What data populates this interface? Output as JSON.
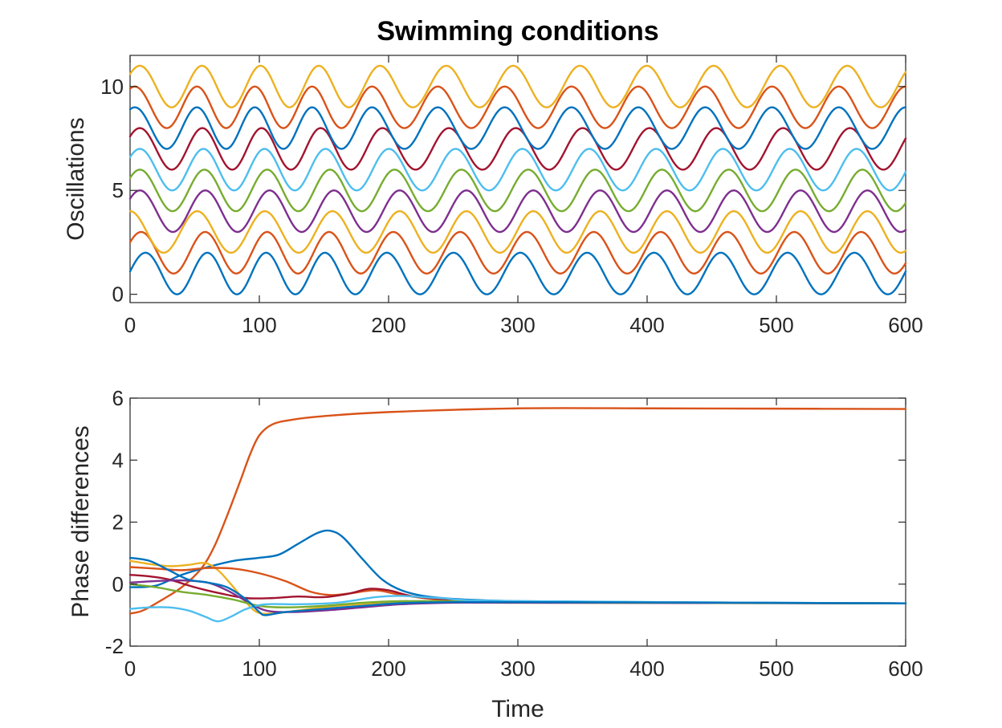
{
  "chart_data": [
    {
      "type": "line",
      "title": "Swimming conditions",
      "xlabel": "",
      "ylabel": "Oscillations",
      "xlim": [
        0,
        600
      ],
      "ylim": [
        -0.4,
        11.5
      ],
      "xticks": [
        0,
        100,
        200,
        300,
        400,
        500,
        600
      ],
      "xtick_labels": [
        "0",
        "100",
        "200",
        "300",
        "400",
        "500",
        "600"
      ],
      "yticks": [
        0,
        5,
        10
      ],
      "ytick_labels": [
        "0",
        "5",
        "10"
      ],
      "grid": false,
      "legend": "none",
      "oscillation": {
        "amplitude": 1,
        "period": 51.7,
        "time_range": [
          0,
          600
        ]
      },
      "series": [
        {
          "color": "#0072BD",
          "offset": 1,
          "value_at_start": 1.1,
          "value_at_end": 1.1
        },
        {
          "color": "#D95319",
          "offset": 2,
          "value_at_start": 2.5,
          "value_at_end": 1.5
        },
        {
          "color": "#EDB120",
          "offset": 3,
          "value_at_start": 4.0,
          "value_at_end": 2.1
        },
        {
          "color": "#7E2F8E",
          "offset": 4,
          "value_at_start": 4.6,
          "value_at_end": 3.1
        },
        {
          "color": "#77AC30",
          "offset": 5,
          "value_at_start": 5.6,
          "value_at_end": 4.4
        },
        {
          "color": "#4DBEEE",
          "offset": 6,
          "value_at_start": 6.6,
          "value_at_end": 5.9
        },
        {
          "color": "#A2142F",
          "offset": 7,
          "value_at_start": 7.6,
          "value_at_end": 7.5
        },
        {
          "color": "#0072BD",
          "offset": 8,
          "value_at_start": 8.9,
          "value_at_end": 9.0
        },
        {
          "color": "#D95319",
          "offset": 9,
          "value_at_start": 9.9,
          "value_at_end": 10.0
        },
        {
          "color": "#EDB120",
          "offset": 10,
          "value_at_start": 10.6,
          "value_at_end": 10.7
        }
      ]
    },
    {
      "type": "line",
      "title": "",
      "xlabel": "Time",
      "ylabel": "Phase differences",
      "xlim": [
        0,
        600
      ],
      "ylim": [
        -2,
        6
      ],
      "xticks": [
        0,
        100,
        200,
        300,
        400,
        500,
        600
      ],
      "xtick_labels": [
        "0",
        "100",
        "200",
        "300",
        "400",
        "500",
        "600"
      ],
      "yticks": [
        -2,
        0,
        2,
        4,
        6
      ],
      "ytick_labels": [
        "-2",
        "0",
        "2",
        "4",
        "6"
      ],
      "grid": false,
      "legend": "none",
      "series": [
        {
          "color": "#D95319",
          "points": [
            [
              0,
              -0.95
            ],
            [
              10,
              -0.85
            ],
            [
              25,
              -0.5
            ],
            [
              40,
              -0.1
            ],
            [
              55,
              0.5
            ],
            [
              65,
              1.2
            ],
            [
              75,
              2.2
            ],
            [
              85,
              3.3
            ],
            [
              93,
              4.2
            ],
            [
              100,
              4.8
            ],
            [
              110,
              5.15
            ],
            [
              125,
              5.3
            ],
            [
              150,
              5.42
            ],
            [
              200,
              5.55
            ],
            [
              300,
              5.67
            ],
            [
              400,
              5.67
            ],
            [
              500,
              5.66
            ],
            [
              600,
              5.65
            ]
          ]
        },
        {
          "color": "#0072BD",
          "points": [
            [
              0,
              -0.1
            ],
            [
              20,
              -0.05
            ],
            [
              40,
              0.3
            ],
            [
              60,
              0.55
            ],
            [
              80,
              0.75
            ],
            [
              100,
              0.85
            ],
            [
              115,
              0.95
            ],
            [
              130,
              1.3
            ],
            [
              145,
              1.65
            ],
            [
              155,
              1.72
            ],
            [
              165,
              1.5
            ],
            [
              180,
              0.8
            ],
            [
              195,
              0.15
            ],
            [
              210,
              -0.2
            ],
            [
              230,
              -0.4
            ],
            [
              260,
              -0.5
            ],
            [
              300,
              -0.55
            ],
            [
              400,
              -0.58
            ],
            [
              500,
              -0.6
            ],
            [
              600,
              -0.62
            ]
          ]
        },
        {
          "color": "#EDB120",
          "points": [
            [
              0,
              0.75
            ],
            [
              15,
              0.65
            ],
            [
              30,
              0.58
            ],
            [
              45,
              0.62
            ],
            [
              58,
              0.68
            ],
            [
              68,
              0.45
            ],
            [
              78,
              0.0
            ],
            [
              88,
              -0.5
            ],
            [
              98,
              -0.9
            ],
            [
              110,
              -0.95
            ],
            [
              130,
              -0.85
            ],
            [
              160,
              -0.7
            ],
            [
              200,
              -0.6
            ],
            [
              250,
              -0.58
            ],
            [
              300,
              -0.6
            ],
            [
              600,
              -0.62
            ]
          ]
        },
        {
          "color": "#D95319",
          "points": [
            [
              0,
              0.55
            ],
            [
              20,
              0.5
            ],
            [
              40,
              0.45
            ],
            [
              60,
              0.52
            ],
            [
              80,
              0.5
            ],
            [
              100,
              0.35
            ],
            [
              120,
              0.1
            ],
            [
              140,
              -0.25
            ],
            [
              155,
              -0.35
            ],
            [
              170,
              -0.3
            ],
            [
              190,
              -0.2
            ],
            [
              210,
              -0.35
            ],
            [
              240,
              -0.5
            ],
            [
              300,
              -0.58
            ],
            [
              600,
              -0.62
            ]
          ]
        },
        {
          "color": "#A2142F",
          "points": [
            [
              0,
              0.3
            ],
            [
              15,
              0.25
            ],
            [
              30,
              0.15
            ],
            [
              50,
              -0.1
            ],
            [
              70,
              -0.3
            ],
            [
              90,
              -0.45
            ],
            [
              110,
              -0.45
            ],
            [
              130,
              -0.4
            ],
            [
              150,
              -0.42
            ],
            [
              170,
              -0.3
            ],
            [
              185,
              -0.15
            ],
            [
              200,
              -0.2
            ],
            [
              220,
              -0.4
            ],
            [
              250,
              -0.5
            ],
            [
              300,
              -0.57
            ],
            [
              600,
              -0.62
            ]
          ]
        },
        {
          "color": "#7E2F8E",
          "points": [
            [
              0,
              0.05
            ],
            [
              20,
              0.1
            ],
            [
              40,
              0.12
            ],
            [
              60,
              0.05
            ],
            [
              75,
              -0.2
            ],
            [
              90,
              -0.55
            ],
            [
              105,
              -0.85
            ],
            [
              125,
              -0.9
            ],
            [
              150,
              -0.85
            ],
            [
              180,
              -0.75
            ],
            [
              210,
              -0.65
            ],
            [
              250,
              -0.6
            ],
            [
              300,
              -0.6
            ],
            [
              600,
              -0.62
            ]
          ]
        },
        {
          "color": "#77AC30",
          "points": [
            [
              0,
              0.0
            ],
            [
              20,
              -0.1
            ],
            [
              40,
              -0.25
            ],
            [
              60,
              -0.35
            ],
            [
              80,
              -0.5
            ],
            [
              100,
              -0.7
            ],
            [
              120,
              -0.75
            ],
            [
              150,
              -0.7
            ],
            [
              180,
              -0.6
            ],
            [
              210,
              -0.55
            ],
            [
              250,
              -0.55
            ],
            [
              300,
              -0.58
            ],
            [
              600,
              -0.62
            ]
          ]
        },
        {
          "color": "#4DBEEE",
          "points": [
            [
              0,
              -0.8
            ],
            [
              15,
              -0.75
            ],
            [
              30,
              -0.75
            ],
            [
              45,
              -0.85
            ],
            [
              58,
              -1.05
            ],
            [
              68,
              -1.2
            ],
            [
              78,
              -1.05
            ],
            [
              90,
              -0.8
            ],
            [
              105,
              -0.65
            ],
            [
              130,
              -0.65
            ],
            [
              160,
              -0.6
            ],
            [
              190,
              -0.42
            ],
            [
              210,
              -0.38
            ],
            [
              240,
              -0.45
            ],
            [
              300,
              -0.55
            ],
            [
              600,
              -0.62
            ]
          ]
        },
        {
          "color": "#0072BD",
          "points": [
            [
              0,
              0.85
            ],
            [
              15,
              0.75
            ],
            [
              30,
              0.45
            ],
            [
              45,
              0.15
            ],
            [
              60,
              0.05
            ],
            [
              75,
              -0.1
            ],
            [
              90,
              -0.5
            ],
            [
              100,
              -0.9
            ],
            [
              105,
              -1.0
            ],
            [
              120,
              -0.9
            ],
            [
              150,
              -0.8
            ],
            [
              180,
              -0.7
            ],
            [
              220,
              -0.6
            ],
            [
              300,
              -0.58
            ],
            [
              600,
              -0.62
            ]
          ]
        }
      ]
    }
  ]
}
